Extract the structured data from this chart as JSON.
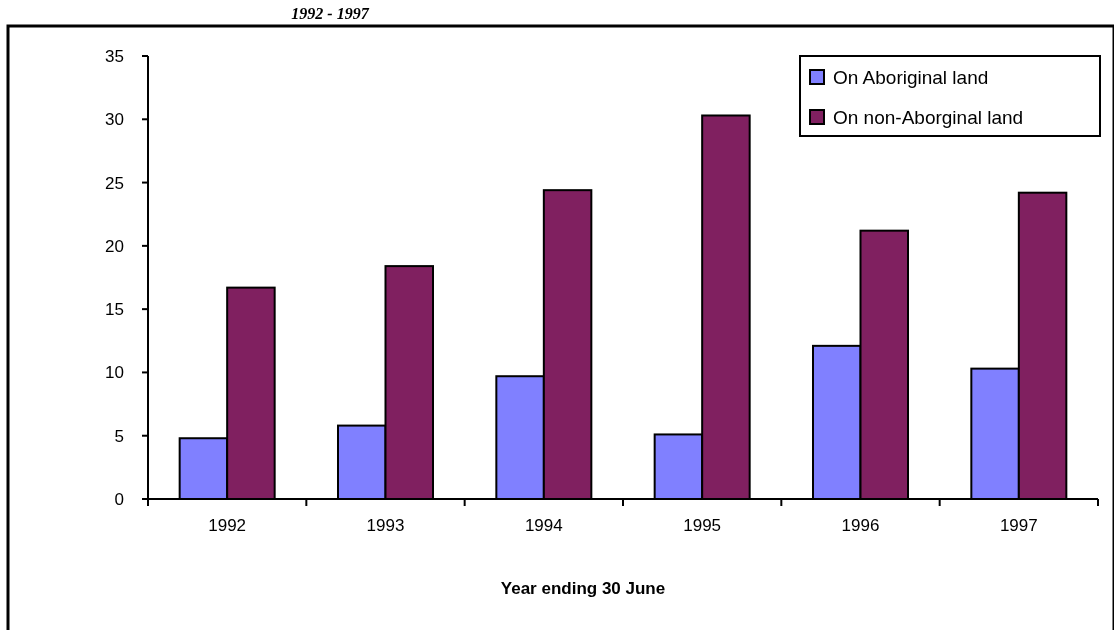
{
  "chart_data": {
    "type": "bar",
    "title": "1992 - 1997",
    "xlabel": "Year ending 30 June",
    "categories": [
      "1992",
      "1993",
      "1994",
      "1995",
      "1996",
      "1997"
    ],
    "series": [
      {
        "name": "On Aboriginal land",
        "color": "#8080ff",
        "values": [
          4.8,
          5.8,
          9.7,
          5.1,
          12.1,
          10.3
        ]
      },
      {
        "name": "On non-Aborginal land",
        "color": "#802060",
        "values": [
          16.7,
          18.4,
          24.4,
          30.3,
          21.2,
          24.2
        ]
      }
    ],
    "ylim": [
      0,
      35
    ],
    "yticks": [
      0,
      5,
      10,
      15,
      20,
      25,
      30,
      35
    ],
    "grid": false,
    "legend": "top right"
  }
}
